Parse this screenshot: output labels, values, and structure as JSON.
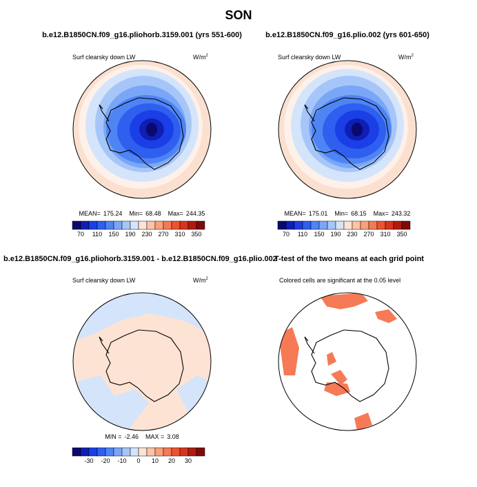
{
  "title": "SON",
  "panels": [
    {
      "title": "b.e12.B1850CN.f09_g16.pliohorb.3159.001 (yrs 551-600)",
      "variable": "Surf clearsky down LW",
      "units": "W/m",
      "units_power": "2",
      "stats": [
        {
          "label": "MEAN=",
          "value": 175.24
        },
        {
          "label": "Min=",
          "value": 68.48
        },
        {
          "label": "Max=",
          "value": 244.35
        }
      ],
      "colorbar_labels": [
        70,
        110,
        150,
        190,
        230,
        270,
        310,
        350
      ]
    },
    {
      "title": "b.e12.B1850CN.f09_g16.plio.002 (yrs 601-650)",
      "variable": "Surf clearsky down LW",
      "units": "W/m",
      "units_power": "2",
      "stats": [
        {
          "label": "MEAN=",
          "value": 175.01
        },
        {
          "label": "Min=",
          "value": 68.15
        },
        {
          "label": "Max=",
          "value": 243.32
        }
      ],
      "colorbar_labels": [
        70,
        110,
        150,
        190,
        230,
        270,
        310,
        350
      ]
    },
    {
      "title": "b.e12.B1850CN.f09_g16.pliohorb.3159.001 - b.e12.B1850CN.f09_g16.plio.002",
      "variable": "Surf clearsky down LW",
      "units": "W/m",
      "units_power": "2",
      "stats": [
        {
          "label": "MIN =",
          "value": -2.46
        },
        {
          "label": "MAX =",
          "value": 3.08
        }
      ],
      "colorbar_labels": [
        -30,
        -20,
        -10,
        0,
        10,
        20,
        30
      ]
    },
    {
      "title": "T-test of the two means at each grid point",
      "variable": "Colored cells are significant at the 0.05 level"
    }
  ],
  "colorbar_colors": [
    "#0a0a6e",
    "#0f1eb4",
    "#1a3fe6",
    "#2e5fef",
    "#4f84f5",
    "#7aa6f7",
    "#a6c6f9",
    "#d4e4fb",
    "#fde3d4",
    "#fcc3a6",
    "#f9a07c",
    "#f57a55",
    "#ec5430",
    "#d6341c",
    "#b01a12",
    "#7e0b08"
  ]
}
